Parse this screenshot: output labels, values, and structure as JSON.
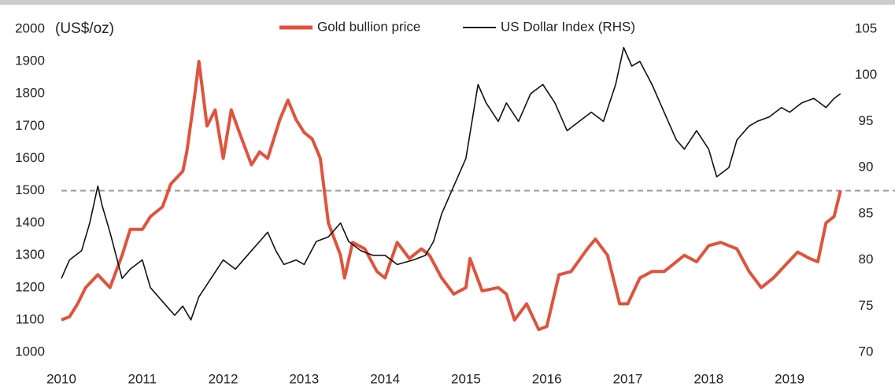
{
  "chart_data": {
    "type": "line",
    "y_label": "(US$/oz)",
    "xlim": [
      2010,
      2019.7
    ],
    "xticks": [
      2010,
      2011,
      2012,
      2013,
      2014,
      2015,
      2016,
      2017,
      2018,
      2019
    ],
    "ylim": [
      1000,
      2000
    ],
    "yticks": [
      1000,
      1100,
      1200,
      1300,
      1400,
      1500,
      1600,
      1700,
      1800,
      1900,
      2000
    ],
    "y2lim": [
      70,
      105
    ],
    "y2ticks": [
      70,
      75,
      80,
      85,
      90,
      95,
      100,
      105
    ],
    "hline": 1500,
    "legend": "top",
    "series": [
      {
        "name": "Gold bullion price",
        "color": "#e0533d",
        "axis": "y",
        "x": [
          2010.0,
          2010.1,
          2010.2,
          2010.3,
          2010.45,
          2010.6,
          2010.75,
          2010.85,
          2011.0,
          2011.1,
          2011.25,
          2011.35,
          2011.5,
          2011.55,
          2011.65,
          2011.7,
          2011.8,
          2011.9,
          2012.0,
          2012.1,
          2012.2,
          2012.35,
          2012.45,
          2012.55,
          2012.7,
          2012.8,
          2012.9,
          2013.0,
          2013.1,
          2013.2,
          2013.3,
          2013.45,
          2013.5,
          2013.6,
          2013.75,
          2013.9,
          2014.0,
          2014.15,
          2014.3,
          2014.45,
          2014.55,
          2014.7,
          2014.85,
          2015.0,
          2015.05,
          2015.2,
          2015.4,
          2015.5,
          2015.6,
          2015.75,
          2015.9,
          2016.0,
          2016.15,
          2016.3,
          2016.5,
          2016.6,
          2016.75,
          2016.9,
          2017.0,
          2017.15,
          2017.3,
          2017.45,
          2017.6,
          2017.7,
          2017.85,
          2018.0,
          2018.15,
          2018.35,
          2018.5,
          2018.65,
          2018.8,
          2018.95,
          2019.1,
          2019.25,
          2019.35,
          2019.45,
          2019.55,
          2019.63
        ],
        "values": [
          1100,
          1110,
          1150,
          1200,
          1240,
          1200,
          1300,
          1380,
          1380,
          1420,
          1450,
          1520,
          1560,
          1620,
          1800,
          1900,
          1700,
          1750,
          1600,
          1750,
          1680,
          1580,
          1620,
          1600,
          1720,
          1780,
          1720,
          1680,
          1660,
          1600,
          1400,
          1300,
          1230,
          1340,
          1320,
          1250,
          1230,
          1340,
          1290,
          1320,
          1300,
          1230,
          1180,
          1200,
          1290,
          1190,
          1200,
          1180,
          1100,
          1150,
          1070,
          1080,
          1240,
          1250,
          1320,
          1350,
          1300,
          1150,
          1150,
          1230,
          1250,
          1250,
          1280,
          1300,
          1280,
          1330,
          1340,
          1320,
          1250,
          1200,
          1230,
          1270,
          1310,
          1290,
          1280,
          1400,
          1420,
          1500
        ]
      },
      {
        "name": "US Dollar Index (RHS)",
        "color": "#111111",
        "axis": "y2",
        "x": [
          2010.0,
          2010.1,
          2010.25,
          2010.35,
          2010.45,
          2010.5,
          2010.6,
          2010.75,
          2010.85,
          2011.0,
          2011.1,
          2011.3,
          2011.4,
          2011.5,
          2011.6,
          2011.7,
          2011.85,
          2012.0,
          2012.15,
          2012.35,
          2012.45,
          2012.55,
          2012.65,
          2012.75,
          2012.9,
          2013.0,
          2013.15,
          2013.3,
          2013.45,
          2013.55,
          2013.7,
          2013.85,
          2014.0,
          2014.15,
          2014.35,
          2014.5,
          2014.6,
          2014.7,
          2014.85,
          2015.0,
          2015.15,
          2015.25,
          2015.4,
          2015.5,
          2015.65,
          2015.8,
          2015.95,
          2016.1,
          2016.25,
          2016.4,
          2016.55,
          2016.7,
          2016.85,
          2016.95,
          2017.05,
          2017.15,
          2017.3,
          2017.45,
          2017.6,
          2017.7,
          2017.85,
          2018.0,
          2018.1,
          2018.25,
          2018.35,
          2018.5,
          2018.6,
          2018.75,
          2018.9,
          2019.0,
          2019.15,
          2019.3,
          2019.45,
          2019.55,
          2019.63
        ],
        "values": [
          78,
          80,
          81,
          84,
          88,
          86,
          83,
          78,
          79,
          80,
          77,
          75,
          74,
          75,
          73.5,
          76,
          78,
          80,
          79,
          81,
          82,
          83,
          81,
          79.5,
          80,
          79.5,
          82,
          82.5,
          84,
          82,
          81,
          80.5,
          80.5,
          79.5,
          80,
          80.5,
          82,
          85,
          88,
          91,
          99,
          97,
          95,
          97,
          95,
          98,
          99,
          97,
          94,
          95,
          96,
          95,
          99,
          103,
          101,
          101.5,
          99,
          96,
          93,
          92,
          94,
          92,
          89,
          90,
          93,
          94.5,
          95,
          95.5,
          96.5,
          96,
          97,
          97.5,
          96.5,
          97.5,
          98
        ]
      }
    ]
  }
}
